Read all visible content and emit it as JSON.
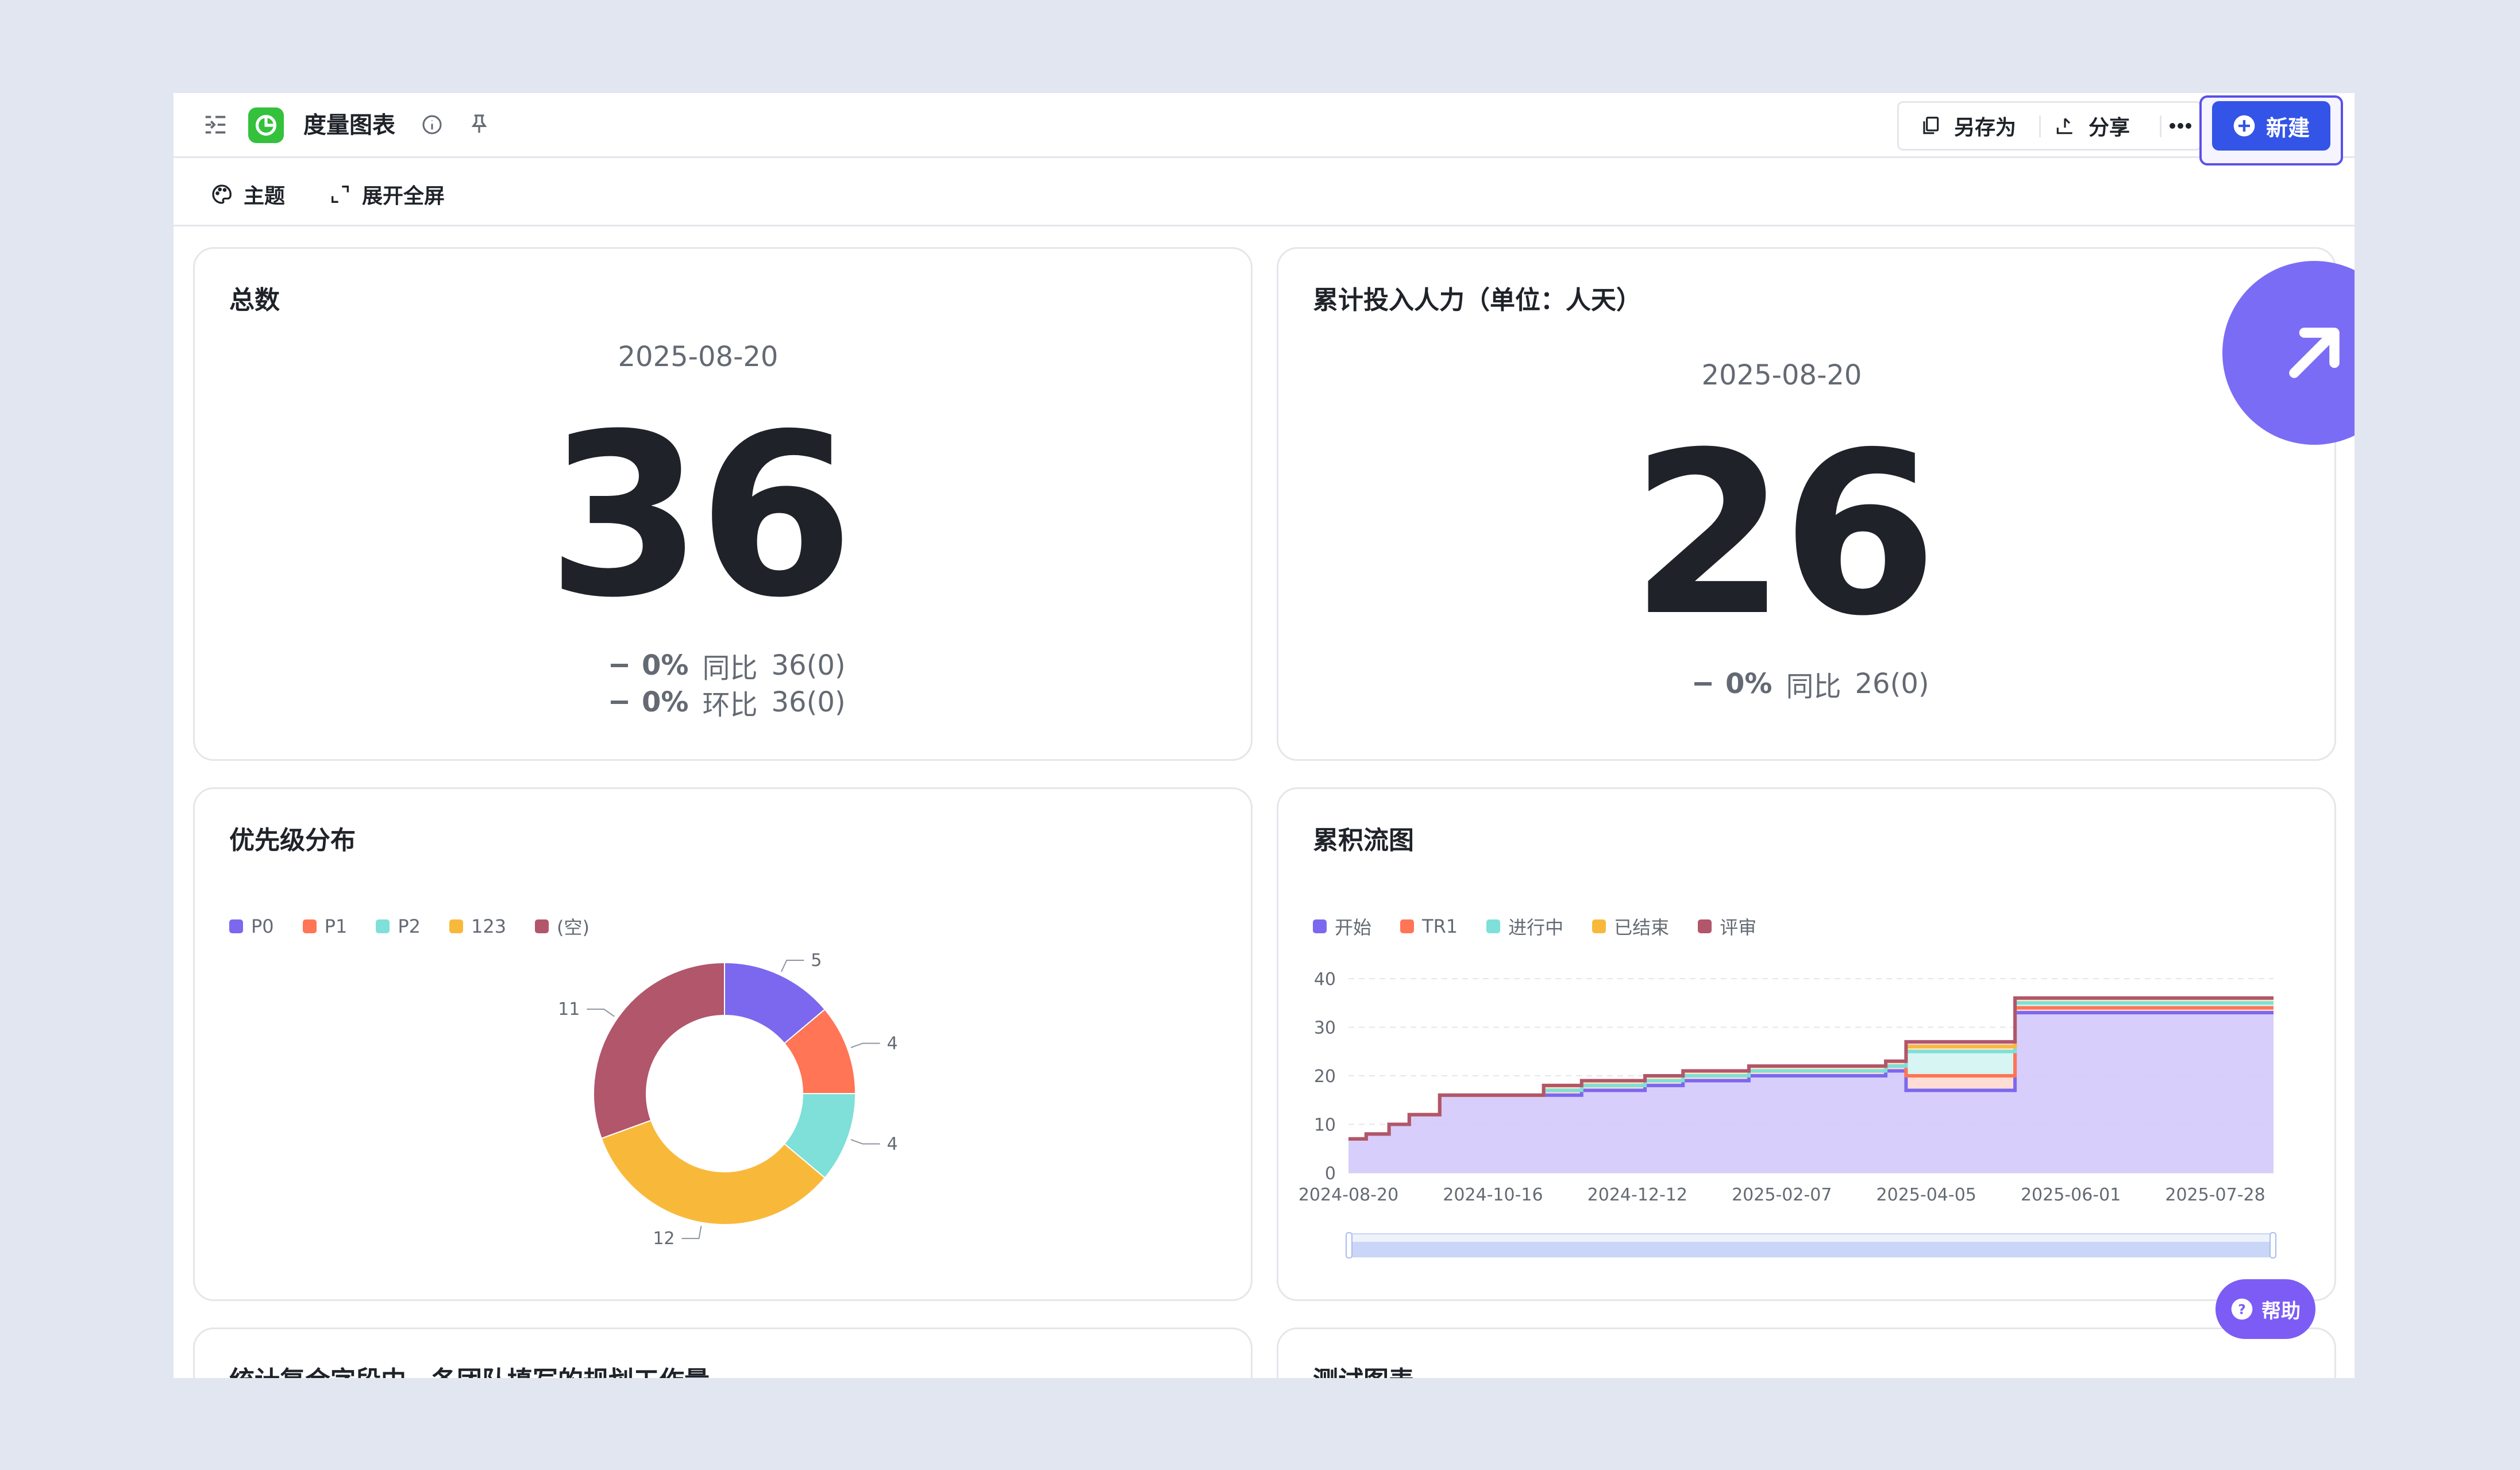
{
  "header": {
    "title": "度量图表",
    "save_as": "另存为",
    "share": "分享",
    "new": "新建"
  },
  "toolbar": {
    "theme": "主题",
    "fullscreen": "展开全屏"
  },
  "cards": {
    "total": {
      "title": "总数",
      "date": "2025-08-20",
      "value": "36",
      "yoy_pct": "0%",
      "yoy_label": "同比",
      "yoy_val": "36(0)",
      "mom_pct": "0%",
      "mom_label": "环比",
      "mom_val": "36(0)"
    },
    "effort": {
      "title": "累计投入人力（单位：人天）",
      "date": "2025-08-20",
      "value": "26",
      "yoy_pct": "0%",
      "yoy_label": "同比",
      "yoy_val": "26(0)"
    },
    "priority": {
      "title": "优先级分布"
    },
    "cfd": {
      "title": "累积流图"
    },
    "team": {
      "title": "统计复合字段中，各团队填写的规划工作量"
    },
    "test": {
      "title": "测试图表"
    }
  },
  "help_label": "帮助",
  "colors": {
    "accent": "#3354e6",
    "purple": "#7b6cf6",
    "p0": "#7b68ee",
    "p1": "#ff7555",
    "p2": "#7ee0d8",
    "p123": "#f8b93b",
    "empty": "#b1566b"
  },
  "icons": [
    "sidebar-toggle-icon",
    "chart-logo-icon",
    "info-icon",
    "pin-icon",
    "copy-icon",
    "share-icon",
    "more-icon",
    "plus-circle-icon",
    "palette-icon",
    "expand-icon",
    "help-icon",
    "arrow-up-right-icon"
  ],
  "chart_data": [
    {
      "type": "pie",
      "labels": [
        "P0",
        "P1",
        "P2",
        "123",
        "(空)"
      ],
      "values": [
        5,
        4,
        4,
        12,
        11
      ],
      "donut": true,
      "legend": "top-left"
    },
    {
      "type": "area",
      "stacked": true,
      "x_ticks": [
        "2024-08-20",
        "2024-10-16",
        "2024-12-12",
        "2025-02-07",
        "2025-04-05",
        "2025-06-01",
        "2025-07-28"
      ],
      "y_ticks": [
        0,
        10,
        20,
        30,
        40
      ],
      "ylim": [
        0,
        40
      ],
      "legend": "top-left",
      "series_names": [
        "开始",
        "TR1",
        "进行中",
        "已结束",
        "评审"
      ],
      "x": [
        "2024-08-20",
        "2024-08-27",
        "2024-09-05",
        "2024-09-13",
        "2024-09-25",
        "2024-10-15",
        "2024-11-05",
        "2024-11-20",
        "2024-12-15",
        "2024-12-30",
        "2025-01-25",
        "2025-02-25",
        "2025-03-20",
        "2025-03-28",
        "2025-05-10",
        "2025-08-20"
      ],
      "series": [
        {
          "name": "开始",
          "values": [
            7,
            8,
            10,
            12,
            16,
            16,
            16,
            17,
            18,
            19,
            20,
            20,
            21,
            17,
            33,
            33
          ]
        },
        {
          "name": "TR1",
          "values": [
            0,
            0,
            0,
            0,
            0,
            0,
            1,
            1,
            1,
            1,
            1,
            1,
            1,
            3,
            1,
            1
          ]
        },
        {
          "name": "进行中",
          "values": [
            0,
            0,
            0,
            0,
            0,
            0,
            0,
            0,
            0,
            0,
            0,
            0,
            0,
            5,
            1,
            1
          ]
        },
        {
          "name": "已结束",
          "values": [
            0,
            0,
            0,
            0,
            0,
            0,
            1,
            1,
            1,
            1,
            1,
            1,
            1,
            1,
            1,
            1
          ]
        },
        {
          "name": "评审",
          "values": [
            0,
            0,
            0,
            0,
            0,
            0,
            0,
            0,
            0,
            0,
            0,
            0,
            0,
            1,
            0,
            0
          ]
        }
      ]
    }
  ]
}
